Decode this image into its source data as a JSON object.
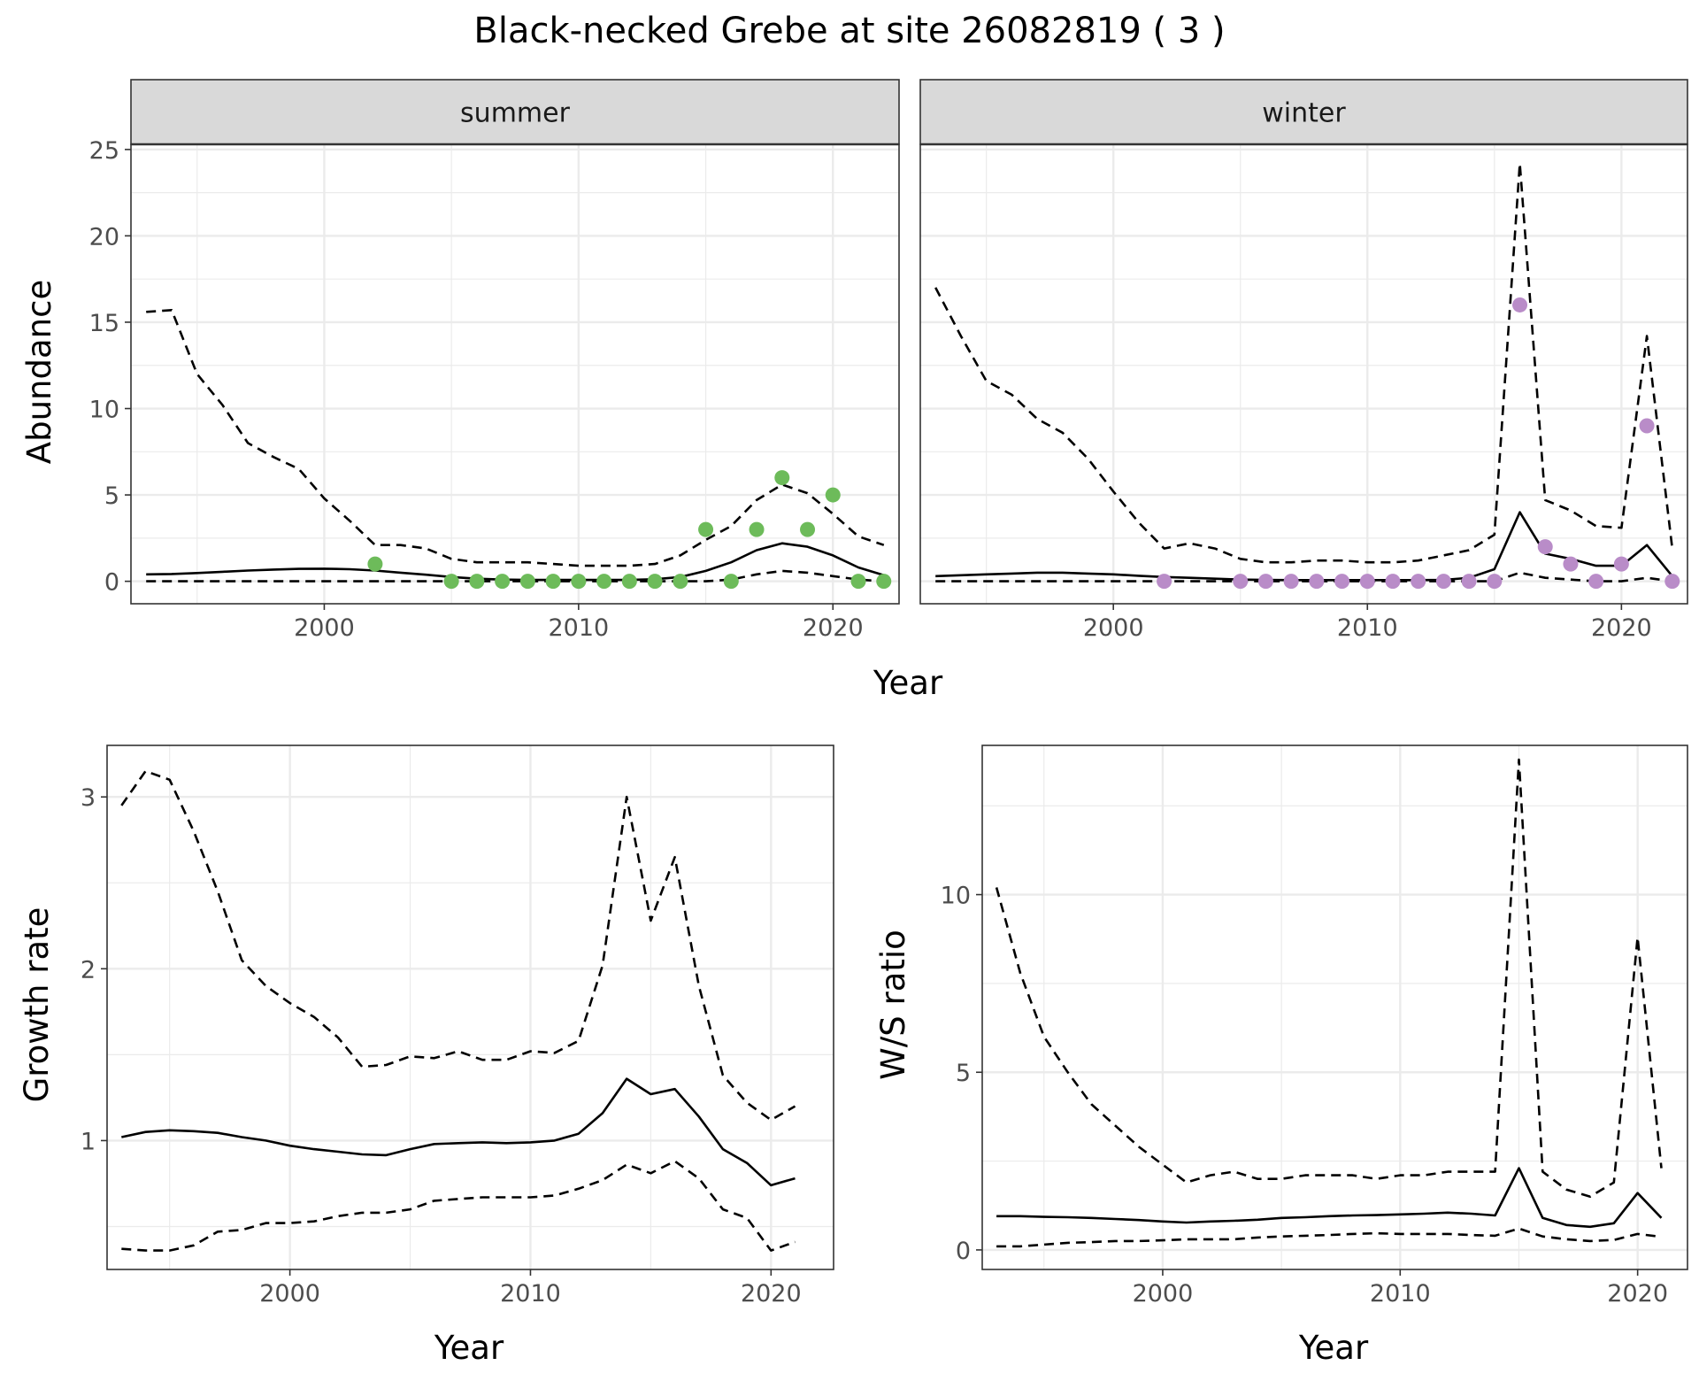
{
  "chart_data": {
    "title": "Black-necked Grebe at site 26082819 ( 3 )",
    "style": {
      "line_color": "#000000",
      "summer_point_color": "#6DBB5A",
      "winter_point_color": "#B98CC8",
      "strip_fill": "#D9D9D9",
      "grid_color": "#EBEBEB",
      "panel_border": "#333333"
    },
    "abundance": {
      "type": "line",
      "xlabel": "Year",
      "ylabel": "Abundance",
      "xlim": [
        1992.4,
        2022.6
      ],
      "ylim": [
        -1.3,
        25.3
      ],
      "xticks": [
        2000,
        2010,
        2020
      ],
      "yticks": [
        0,
        5,
        10,
        15,
        20,
        25
      ],
      "grid": true,
      "facets": [
        {
          "label": "summer",
          "x": [
            1993,
            1994,
            1995,
            1996,
            1997,
            1998,
            1999,
            2000,
            2001,
            2002,
            2003,
            2004,
            2005,
            2006,
            2007,
            2008,
            2009,
            2010,
            2011,
            2012,
            2013,
            2014,
            2015,
            2016,
            2017,
            2018,
            2019,
            2020,
            2021,
            2022
          ],
          "estimate": [
            0.4,
            0.42,
            0.48,
            0.55,
            0.62,
            0.68,
            0.72,
            0.73,
            0.7,
            0.62,
            0.5,
            0.38,
            0.25,
            0.15,
            0.1,
            0.08,
            0.08,
            0.08,
            0.08,
            0.08,
            0.12,
            0.25,
            0.6,
            1.1,
            1.8,
            2.2,
            2.0,
            1.5,
            0.8,
            0.35
          ],
          "upper": [
            15.6,
            15.7,
            12.0,
            10.2,
            8.0,
            7.2,
            6.5,
            4.8,
            3.5,
            2.1,
            2.1,
            1.9,
            1.3,
            1.1,
            1.1,
            1.1,
            1.0,
            0.9,
            0.9,
            0.9,
            1.0,
            1.5,
            2.4,
            3.2,
            4.7,
            5.6,
            5.1,
            3.9,
            2.6,
            2.1
          ],
          "lower": [
            0,
            0,
            0,
            0,
            0,
            0,
            0,
            0,
            0,
            0,
            0,
            0,
            0,
            0,
            0,
            0,
            0,
            0,
            0,
            0,
            0,
            0,
            0,
            0.1,
            0.4,
            0.6,
            0.5,
            0.3,
            0.1,
            0
          ],
          "observed": [
            [
              2002,
              1
            ],
            [
              2005,
              0
            ],
            [
              2006,
              0
            ],
            [
              2007,
              0
            ],
            [
              2008,
              0
            ],
            [
              2009,
              0
            ],
            [
              2010,
              0
            ],
            [
              2011,
              0
            ],
            [
              2012,
              0
            ],
            [
              2013,
              0
            ],
            [
              2014,
              0
            ],
            [
              2015,
              3
            ],
            [
              2016,
              0
            ],
            [
              2017,
              3
            ],
            [
              2018,
              6
            ],
            [
              2019,
              3
            ],
            [
              2020,
              5
            ],
            [
              2021,
              0
            ],
            [
              2022,
              0
            ]
          ]
        },
        {
          "label": "winter",
          "x": [
            1993,
            1994,
            1995,
            1996,
            1997,
            1998,
            1999,
            2000,
            2001,
            2002,
            2003,
            2004,
            2005,
            2006,
            2007,
            2008,
            2009,
            2010,
            2011,
            2012,
            2013,
            2014,
            2015,
            2016,
            2017,
            2018,
            2019,
            2020,
            2021,
            2022
          ],
          "estimate": [
            0.3,
            0.35,
            0.4,
            0.45,
            0.5,
            0.5,
            0.45,
            0.4,
            0.32,
            0.25,
            0.2,
            0.15,
            0.1,
            0.08,
            0.07,
            0.07,
            0.07,
            0.07,
            0.07,
            0.07,
            0.08,
            0.2,
            0.7,
            4.0,
            1.6,
            1.3,
            0.9,
            0.9,
            2.1,
            0.3
          ],
          "upper": [
            17.0,
            14.2,
            11.6,
            10.8,
            9.4,
            8.6,
            7.1,
            5.2,
            3.4,
            1.9,
            2.2,
            1.9,
            1.3,
            1.1,
            1.1,
            1.2,
            1.2,
            1.1,
            1.1,
            1.2,
            1.5,
            1.8,
            2.7,
            24.2,
            4.7,
            4.1,
            3.2,
            3.1,
            14.2,
            1.9
          ],
          "lower": [
            0,
            0,
            0,
            0,
            0,
            0,
            0,
            0,
            0,
            0,
            0,
            0,
            0,
            0,
            0,
            0,
            0,
            0,
            0,
            0,
            0,
            0,
            0,
            0.5,
            0.2,
            0.1,
            0,
            0,
            0.2,
            0
          ],
          "observed": [
            [
              2002,
              0
            ],
            [
              2005,
              0
            ],
            [
              2006,
              0
            ],
            [
              2007,
              0
            ],
            [
              2008,
              0
            ],
            [
              2009,
              0
            ],
            [
              2010,
              0
            ],
            [
              2011,
              0
            ],
            [
              2012,
              0
            ],
            [
              2013,
              0
            ],
            [
              2014,
              0
            ],
            [
              2015,
              0
            ],
            [
              2016,
              16
            ],
            [
              2017,
              2
            ],
            [
              2018,
              1
            ],
            [
              2019,
              0
            ],
            [
              2020,
              1
            ],
            [
              2021,
              9
            ],
            [
              2022,
              0
            ]
          ]
        }
      ]
    },
    "growth_rate": {
      "type": "line",
      "xlabel": "Year",
      "ylabel": "Growth rate",
      "xlim": [
        1992.4,
        2022.6
      ],
      "ylim": [
        0.25,
        3.3
      ],
      "xticks": [
        2000,
        2010,
        2020
      ],
      "yticks": [
        1,
        2,
        3
      ],
      "grid": true,
      "x": [
        1993,
        1994,
        1995,
        1996,
        1997,
        1998,
        1999,
        2000,
        2001,
        2002,
        2003,
        2004,
        2005,
        2006,
        2007,
        2008,
        2009,
        2010,
        2011,
        2012,
        2013,
        2014,
        2015,
        2016,
        2017,
        2018,
        2019,
        2020,
        2021
      ],
      "estimate": [
        1.02,
        1.05,
        1.06,
        1.055,
        1.045,
        1.02,
        1.0,
        0.97,
        0.95,
        0.935,
        0.92,
        0.915,
        0.95,
        0.98,
        0.985,
        0.99,
        0.985,
        0.99,
        1.0,
        1.04,
        1.16,
        1.36,
        1.27,
        1.3,
        1.14,
        0.95,
        0.87,
        0.74,
        0.78
      ],
      "upper": [
        2.95,
        3.15,
        3.1,
        2.8,
        2.45,
        2.05,
        1.9,
        1.8,
        1.72,
        1.6,
        1.43,
        1.44,
        1.49,
        1.48,
        1.52,
        1.47,
        1.47,
        1.52,
        1.51,
        1.58,
        2.02,
        3.0,
        2.28,
        2.65,
        1.9,
        1.38,
        1.22,
        1.12,
        1.2
      ],
      "lower": [
        0.37,
        0.36,
        0.36,
        0.39,
        0.47,
        0.48,
        0.52,
        0.52,
        0.53,
        0.56,
        0.58,
        0.58,
        0.6,
        0.65,
        0.66,
        0.67,
        0.67,
        0.67,
        0.68,
        0.72,
        0.77,
        0.86,
        0.81,
        0.88,
        0.78,
        0.6,
        0.55,
        0.36,
        0.41
      ]
    },
    "ws_ratio": {
      "type": "line",
      "xlabel": "Year",
      "ylabel": "W/S ratio",
      "xlim": [
        1992.4,
        2022.1
      ],
      "ylim": [
        -0.55,
        14.2
      ],
      "xticks": [
        2000,
        2010,
        2020
      ],
      "yticks": [
        0,
        5,
        10
      ],
      "grid": true,
      "x": [
        1993,
        1994,
        1995,
        1996,
        1997,
        1998,
        1999,
        2000,
        2001,
        2002,
        2003,
        2004,
        2005,
        2006,
        2007,
        2008,
        2009,
        2010,
        2011,
        2012,
        2013,
        2014,
        2015,
        2016,
        2017,
        2018,
        2019,
        2020,
        2021
      ],
      "estimate": [
        0.95,
        0.95,
        0.93,
        0.92,
        0.9,
        0.87,
        0.84,
        0.8,
        0.77,
        0.8,
        0.82,
        0.85,
        0.9,
        0.92,
        0.95,
        0.97,
        0.98,
        1.0,
        1.02,
        1.05,
        1.02,
        0.97,
        2.3,
        0.9,
        0.7,
        0.65,
        0.75,
        1.6,
        0.9
      ],
      "upper": [
        10.2,
        7.8,
        6.0,
        5.0,
        4.1,
        3.5,
        2.9,
        2.4,
        1.9,
        2.1,
        2.2,
        2.0,
        2.0,
        2.1,
        2.1,
        2.1,
        2.0,
        2.1,
        2.1,
        2.2,
        2.2,
        2.2,
        13.8,
        2.2,
        1.7,
        1.5,
        1.9,
        8.8,
        2.3
      ],
      "lower": [
        0.1,
        0.1,
        0.15,
        0.2,
        0.22,
        0.25,
        0.25,
        0.27,
        0.3,
        0.3,
        0.3,
        0.35,
        0.38,
        0.4,
        0.42,
        0.45,
        0.47,
        0.45,
        0.45,
        0.45,
        0.42,
        0.4,
        0.6,
        0.38,
        0.3,
        0.25,
        0.28,
        0.45,
        0.37
      ]
    }
  }
}
